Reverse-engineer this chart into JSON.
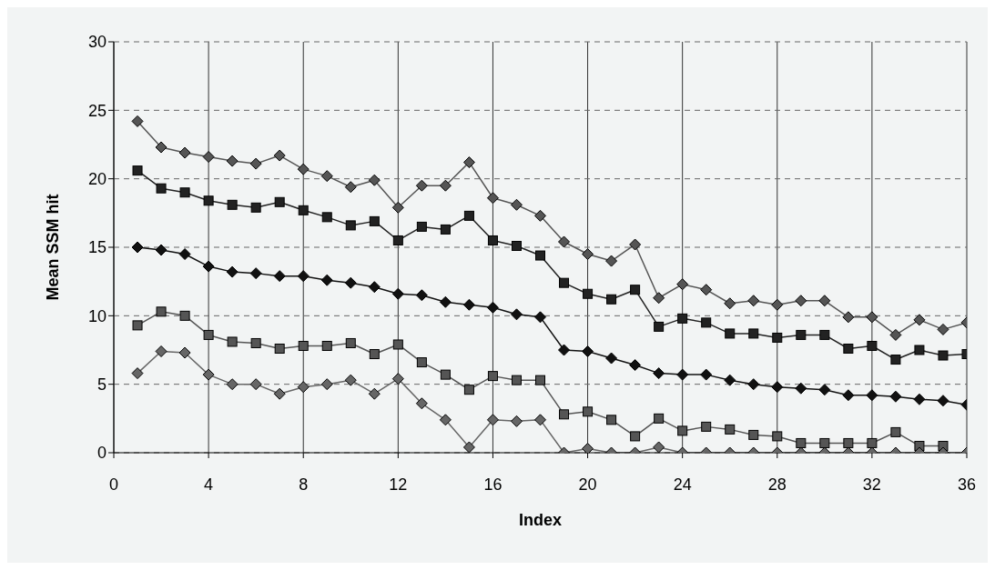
{
  "chart_data": {
    "type": "line",
    "xlabel": "Index",
    "ylabel": "Mean SSM hit",
    "x": [
      1,
      2,
      3,
      4,
      5,
      6,
      7,
      8,
      9,
      10,
      11,
      12,
      13,
      14,
      15,
      16,
      17,
      18,
      19,
      20,
      21,
      22,
      23,
      24,
      25,
      26,
      27,
      28,
      29,
      30,
      31,
      32,
      33,
      34,
      35,
      36
    ],
    "xlim": [
      0,
      36
    ],
    "xticks": [
      0,
      4,
      8,
      12,
      16,
      20,
      24,
      28,
      32,
      36
    ],
    "ylim": [
      0,
      30
    ],
    "yticks": [
      0,
      5,
      10,
      15,
      20,
      25,
      30
    ],
    "grid": true,
    "legend": false,
    "line_style": "solid",
    "series": [
      {
        "color": "#555555",
        "marker": "diamond",
        "values": [
          24.2,
          22.3,
          21.9,
          21.6,
          21.3,
          21.1,
          21.7,
          20.7,
          20.2,
          19.4,
          19.9,
          17.9,
          19.5,
          19.5,
          21.2,
          18.6,
          18.1,
          17.3,
          15.4,
          14.5,
          14.0,
          15.2,
          11.3,
          12.3,
          11.9,
          10.9,
          11.1,
          10.8,
          11.1,
          11.1,
          9.9,
          9.9,
          8.6,
          9.7,
          9.0,
          9.5
        ]
      },
      {
        "color": "#222222",
        "marker": "square",
        "values": [
          20.6,
          19.3,
          19.0,
          18.4,
          18.1,
          17.9,
          18.3,
          17.7,
          17.2,
          16.6,
          16.9,
          15.5,
          16.5,
          16.3,
          17.3,
          15.5,
          15.1,
          14.4,
          12.4,
          11.6,
          11.2,
          11.9,
          9.2,
          9.8,
          9.5,
          8.7,
          8.7,
          8.4,
          8.6,
          8.6,
          7.6,
          7.8,
          6.8,
          7.5,
          7.1,
          7.2
        ]
      },
      {
        "color": "#111111",
        "marker": "diamond",
        "values": [
          15.0,
          14.8,
          14.5,
          13.6,
          13.2,
          13.1,
          12.9,
          12.9,
          12.6,
          12.4,
          12.1,
          11.6,
          11.5,
          11.0,
          10.8,
          10.6,
          10.1,
          9.9,
          7.5,
          7.4,
          6.9,
          6.4,
          5.8,
          5.7,
          5.7,
          5.3,
          5.0,
          4.8,
          4.7,
          4.6,
          4.2,
          4.2,
          4.1,
          3.9,
          3.8,
          3.5
        ]
      },
      {
        "color": "#555555",
        "marker": "square",
        "values": [
          9.3,
          10.3,
          10.0,
          8.6,
          8.1,
          8.0,
          7.6,
          7.8,
          7.8,
          8.0,
          7.2,
          7.9,
          6.6,
          5.7,
          4.6,
          5.6,
          5.3,
          5.3,
          2.8,
          3.0,
          2.4,
          1.2,
          2.5,
          1.6,
          1.9,
          1.7,
          1.3,
          1.2,
          0.7,
          0.7,
          0.7,
          0.7,
          1.5,
          0.5,
          0.5,
          null
        ]
      },
      {
        "color": "#666666",
        "marker": "diamond",
        "values": [
          5.8,
          7.4,
          7.3,
          5.7,
          5.0,
          5.0,
          4.3,
          4.8,
          5.0,
          5.3,
          4.3,
          5.4,
          3.6,
          2.4,
          0.4,
          2.4,
          2.3,
          2.4,
          0,
          0.3,
          0,
          0,
          0.4,
          0,
          0,
          0,
          0,
          0,
          0,
          0,
          0,
          0,
          0,
          0,
          0,
          0
        ]
      }
    ]
  }
}
